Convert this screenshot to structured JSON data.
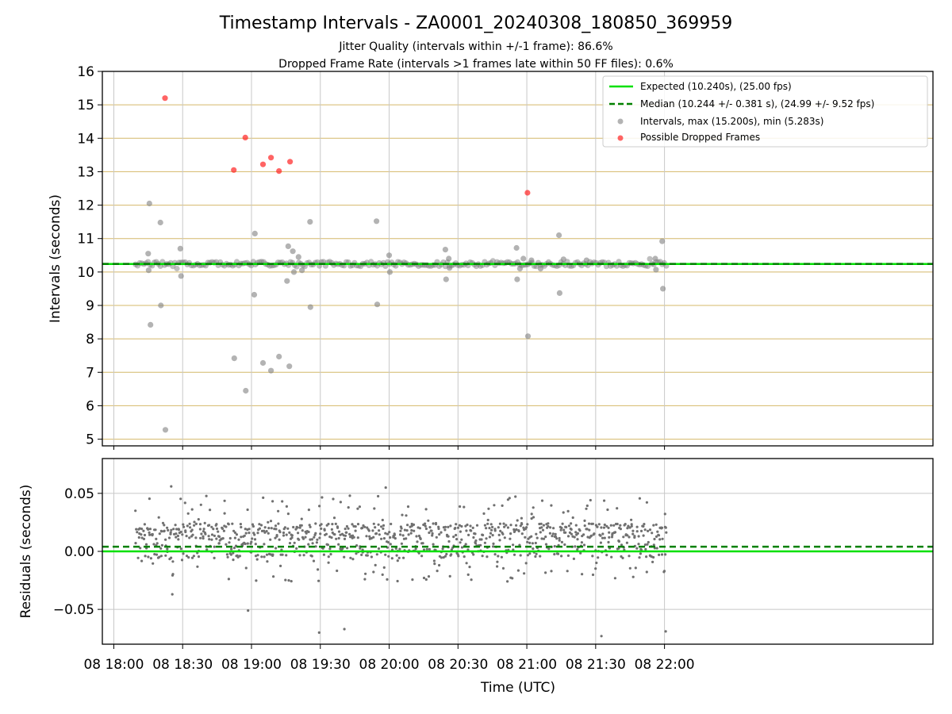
{
  "figure": {
    "title": "Timestamp Intervals - ZA0001_20240308_180850_369959",
    "subtitle_line1": "Jitter Quality (intervals within +/-1 frame): 86.6%",
    "subtitle_line2": "Dropped Frame Rate (intervals >1 frames late within 50 FF files): 0.6%",
    "xlabel": "Time (UTC)"
  },
  "colors": {
    "expected": "#00e000",
    "median": "#008000",
    "intervals": "#808080",
    "dropped": "#ff2222",
    "hgrid": "#d4b86a",
    "vgrid": "#c8c8c8",
    "residual": "#707070"
  },
  "chart_data": [
    {
      "type": "scatter",
      "ylabel": "Intervals (seconds)",
      "ylim": [
        4.8,
        16
      ],
      "yticks": [
        5,
        6,
        7,
        8,
        9,
        10,
        11,
        12,
        13,
        14,
        15,
        16
      ],
      "xlim_minutes": [
        -5,
        357
      ],
      "xticks": [
        {
          "minutes": 0,
          "label": "08 18:00"
        },
        {
          "minutes": 30,
          "label": "08 18:30"
        },
        {
          "minutes": 60,
          "label": "08 19:00"
        },
        {
          "minutes": 90,
          "label": "08 19:30"
        },
        {
          "minutes": 120,
          "label": "08 20:00"
        },
        {
          "minutes": 150,
          "label": "08 20:30"
        },
        {
          "minutes": 180,
          "label": "08 21:00"
        },
        {
          "minutes": 210,
          "label": "08 21:30"
        },
        {
          "minutes": 240,
          "label": "08 22:00"
        }
      ],
      "grid": true,
      "legend_position": "top-right",
      "expected": 10.24,
      "median": 10.244,
      "legend": [
        {
          "label": "Expected (10.240s), (25.00 fps)",
          "kind": "line"
        },
        {
          "label": "Median (10.244 +/- 0.381 s), (24.99 +/- 9.52 fps)",
          "kind": "dashed"
        },
        {
          "label": "Intervals, max (15.200s), min (5.283s)",
          "kind": "dot-gray"
        },
        {
          "label": "Possible Dropped Frames",
          "kind": "dot-red"
        }
      ],
      "interval_range_minutes": [
        9.5,
        241
      ],
      "interval_outliers": [
        {
          "t": 15.5,
          "v": 12.05
        },
        {
          "t": 15.0,
          "v": 10.55
        },
        {
          "t": 16.0,
          "v": 8.42
        },
        {
          "t": 15.2,
          "v": 10.05
        },
        {
          "t": 20.3,
          "v": 11.48
        },
        {
          "t": 20.5,
          "v": 9.0
        },
        {
          "t": 22.5,
          "v": 5.28
        },
        {
          "t": 29.0,
          "v": 10.7
        },
        {
          "t": 29.3,
          "v": 9.88
        },
        {
          "t": 52.5,
          "v": 7.42
        },
        {
          "t": 57.5,
          "v": 6.45
        },
        {
          "t": 61.5,
          "v": 11.15
        },
        {
          "t": 61.2,
          "v": 9.32
        },
        {
          "t": 65.0,
          "v": 7.28
        },
        {
          "t": 68.5,
          "v": 7.05
        },
        {
          "t": 72.0,
          "v": 7.47
        },
        {
          "t": 76.0,
          "v": 10.77
        },
        {
          "t": 78.0,
          "v": 10.62
        },
        {
          "t": 75.5,
          "v": 9.73
        },
        {
          "t": 76.5,
          "v": 7.18
        },
        {
          "t": 78.5,
          "v": 10.0
        },
        {
          "t": 80.5,
          "v": 10.45
        },
        {
          "t": 82.0,
          "v": 10.05
        },
        {
          "t": 85.5,
          "v": 11.5
        },
        {
          "t": 85.7,
          "v": 8.95
        },
        {
          "t": 114.5,
          "v": 11.52
        },
        {
          "t": 114.8,
          "v": 9.03
        },
        {
          "t": 120.0,
          "v": 10.5
        },
        {
          "t": 120.3,
          "v": 10.0
        },
        {
          "t": 144.5,
          "v": 10.67
        },
        {
          "t": 144.8,
          "v": 9.78
        },
        {
          "t": 146.0,
          "v": 10.4
        },
        {
          "t": 146.3,
          "v": 10.12
        },
        {
          "t": 175.5,
          "v": 10.72
        },
        {
          "t": 175.8,
          "v": 9.78
        },
        {
          "t": 177.0,
          "v": 10.1
        },
        {
          "t": 178.5,
          "v": 10.4
        },
        {
          "t": 180.5,
          "v": 8.08
        },
        {
          "t": 182.0,
          "v": 10.35
        },
        {
          "t": 186.0,
          "v": 10.1
        },
        {
          "t": 194.0,
          "v": 11.1
        },
        {
          "t": 194.3,
          "v": 9.37
        },
        {
          "t": 196.0,
          "v": 10.38
        },
        {
          "t": 206.0,
          "v": 10.35
        },
        {
          "t": 236.0,
          "v": 10.4
        },
        {
          "t": 236.3,
          "v": 10.07
        },
        {
          "t": 239.0,
          "v": 10.92
        },
        {
          "t": 239.3,
          "v": 9.5
        }
      ],
      "dropped_frames": [
        {
          "t": 22.3,
          "v": 15.2
        },
        {
          "t": 52.3,
          "v": 13.05
        },
        {
          "t": 57.3,
          "v": 14.02
        },
        {
          "t": 65.0,
          "v": 13.22
        },
        {
          "t": 68.5,
          "v": 13.42
        },
        {
          "t": 72.0,
          "v": 13.02
        },
        {
          "t": 76.8,
          "v": 13.3
        },
        {
          "t": 180.3,
          "v": 12.37
        }
      ]
    },
    {
      "type": "scatter",
      "ylabel": "Residuals (seconds)",
      "ylim": [
        -0.08,
        0.08
      ],
      "yticks": [
        {
          "value": 0.05,
          "label": "0.05"
        },
        {
          "value": 0.0,
          "label": "0.00"
        },
        {
          "value": -0.05,
          "label": "−0.05"
        }
      ],
      "expected": 0.0,
      "median": 0.004,
      "residual_range_minutes": [
        9.5,
        241
      ],
      "residual_outliers": [
        {
          "t": 25.0,
          "v": 0.056
        },
        {
          "t": 25.5,
          "v": -0.037
        },
        {
          "t": 58.5,
          "v": -0.051
        },
        {
          "t": 89.5,
          "v": -0.07
        },
        {
          "t": 100.5,
          "v": -0.067
        },
        {
          "t": 118.5,
          "v": 0.055
        },
        {
          "t": 212.5,
          "v": -0.073
        },
        {
          "t": 240.5,
          "v": -0.069
        }
      ]
    }
  ]
}
